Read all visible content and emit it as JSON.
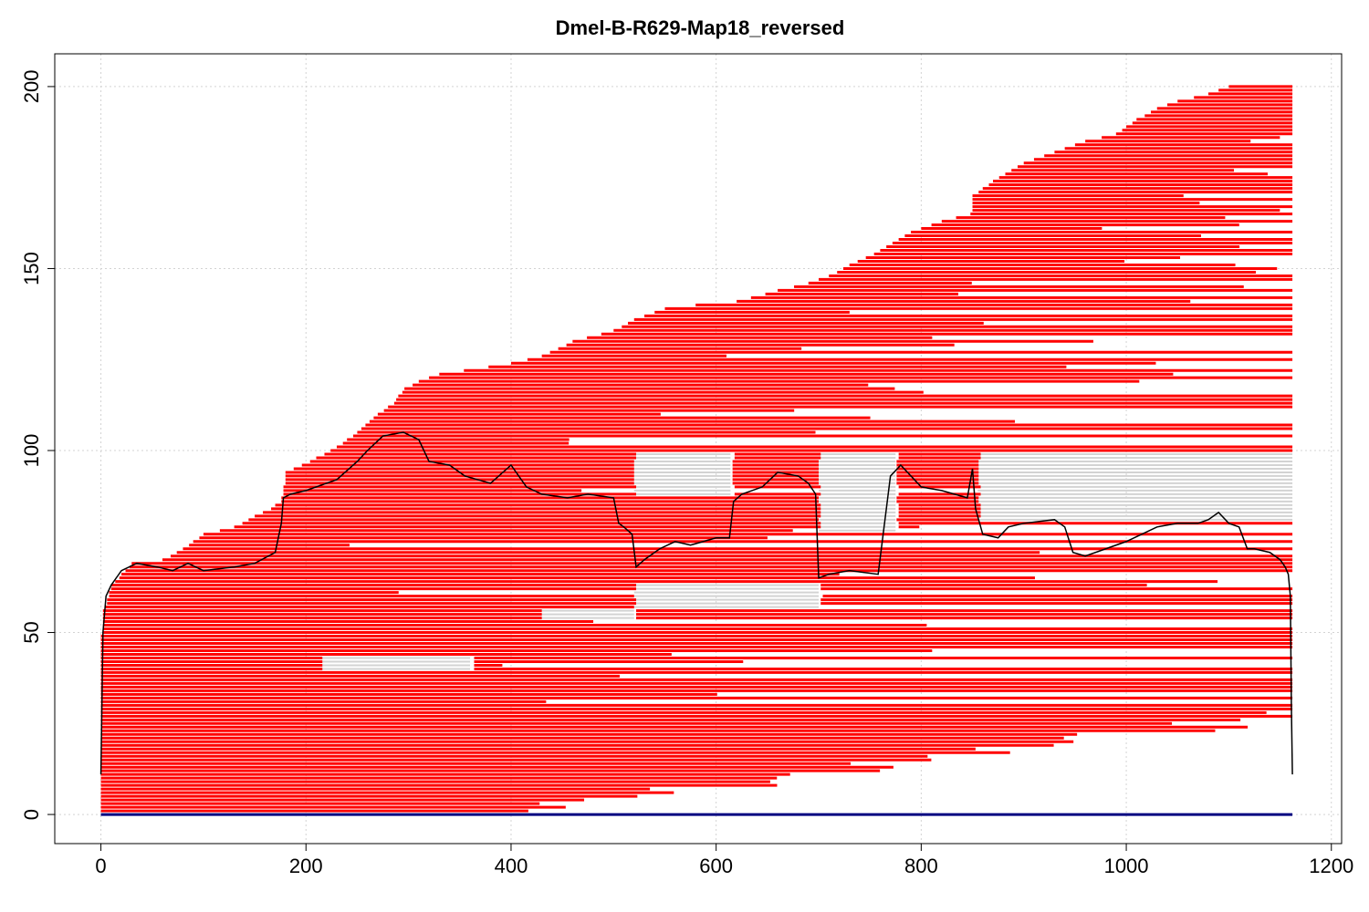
{
  "chart_data": {
    "type": "line",
    "title": "Dmel-B-R629-Map18_reversed",
    "xlabel": "",
    "ylabel": "",
    "xlim": [
      -45,
      1210
    ],
    "ylim": [
      -8,
      209
    ],
    "x_ticks": [
      0,
      200,
      400,
      600,
      800,
      1000,
      1200
    ],
    "x_tick_labels": [
      "0",
      "200",
      "400",
      "600",
      "800",
      "1000",
      "1200"
    ],
    "y_ticks": [
      0,
      50,
      100,
      150,
      200
    ],
    "y_tick_labels": [
      "0",
      "50",
      "100",
      "150",
      "200"
    ],
    "grid": true,
    "legend": "none",
    "colors": {
      "reads": "#ff0000",
      "gaps": "#d3d3d3",
      "coverage": "#000000",
      "baseline": "#000080",
      "grid": "#d3d3d3"
    },
    "reference_length": 1162,
    "series": [
      {
        "kind": "coverage",
        "x": [
          0,
          2,
          5,
          10,
          20,
          35,
          55,
          70,
          85,
          100,
          130,
          150,
          170,
          176,
          178,
          185,
          200,
          230,
          250,
          260,
          275,
          295,
          310,
          320,
          340,
          355,
          380,
          400,
          415,
          430,
          455,
          475,
          500,
          505,
          510,
          518,
          522,
          530,
          545,
          560,
          575,
          600,
          613,
          617,
          625,
          645,
          660,
          680,
          690,
          697,
          700,
          710,
          730,
          758,
          762,
          770,
          780,
          800,
          820,
          845,
          850,
          853,
          860,
          875,
          885,
          900,
          930,
          940,
          948,
          960,
          980,
          1000,
          1030,
          1050,
          1070,
          1080,
          1090,
          1100,
          1110,
          1118,
          1125,
          1140,
          1150,
          1155,
          1158,
          1160,
          1161,
          1162
        ],
        "y": [
          11,
          50,
          60,
          63,
          67,
          69,
          68,
          67,
          69,
          67,
          68,
          69,
          72,
          80,
          87,
          88,
          89,
          92,
          97,
          100,
          104,
          105,
          103,
          97,
          96,
          93,
          91,
          96,
          90,
          88,
          87,
          88,
          87,
          80,
          79,
          77,
          68,
          70,
          73,
          75,
          74,
          76,
          76,
          86,
          88,
          90,
          94,
          93,
          91,
          88,
          65,
          66,
          67,
          66,
          75,
          93,
          96,
          90,
          89,
          87,
          95,
          84,
          77,
          76,
          79,
          80,
          81,
          79,
          72,
          71,
          73,
          75,
          79,
          80,
          80,
          81,
          83,
          80,
          79,
          73,
          73,
          72,
          70,
          68,
          66,
          60,
          30,
          11
        ]
      }
    ]
  }
}
